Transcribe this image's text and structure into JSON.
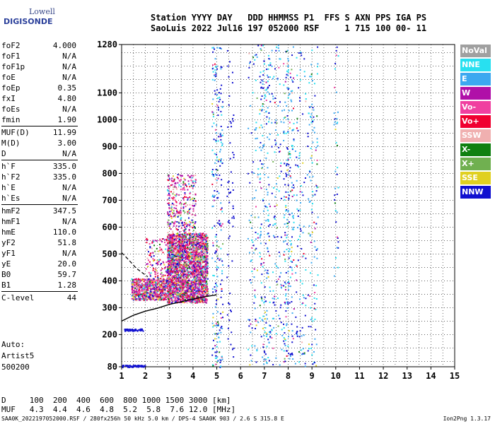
{
  "logo": {
    "line1": "Lowell",
    "line2": "DIGISONDE"
  },
  "header": {
    "line1": "Station YYYY DAY   DDD HHMMSS P1  FFS S AXN PPS IGA PS",
    "line2": "SaoLuis 2022 Jul16 197 052000 RSF     1 715 100 00- 11"
  },
  "params": [
    {
      "k": "foF2",
      "v": "4.000"
    },
    {
      "k": "foF1",
      "v": "N/A"
    },
    {
      "k": "foF1p",
      "v": "N/A"
    },
    {
      "k": "foE",
      "v": "N/A"
    },
    {
      "k": "foEp",
      "v": "0.35"
    },
    {
      "k": "fxI",
      "v": "4.80"
    },
    {
      "k": "foEs",
      "v": "N/A"
    },
    {
      "k": "fmin",
      "v": "1.90"
    },
    {
      "k": "MUF(D)",
      "v": "11.99"
    },
    {
      "k": "M(D)",
      "v": "3.00"
    },
    {
      "k": "D",
      "v": "N/A"
    },
    {
      "k": "h`F",
      "v": "335.0"
    },
    {
      "k": "h`F2",
      "v": "335.0"
    },
    {
      "k": "h`E",
      "v": "N/A"
    },
    {
      "k": "h`Es",
      "v": "N/A"
    },
    {
      "k": "hmF2",
      "v": "347.5"
    },
    {
      "k": "hmF1",
      "v": "N/A"
    },
    {
      "k": "hmE",
      "v": "110.0"
    },
    {
      "k": "yF2",
      "v": "51.8"
    },
    {
      "k": "yF1",
      "v": "N/A"
    },
    {
      "k": "yE",
      "v": "20.0"
    },
    {
      "k": "B0",
      "v": "59.7"
    },
    {
      "k": "B1",
      "v": "1.28"
    },
    {
      "k": "C-level",
      "v": "44"
    }
  ],
  "auto": {
    "line1": "Auto:",
    "line2": "Artist5",
    "line3": "500200"
  },
  "legend": [
    {
      "label": "NoVal",
      "color": "#a0a0a0"
    },
    {
      "label": "NNE",
      "color": "#28e0f0"
    },
    {
      "label": "E",
      "color": "#3ca8f0"
    },
    {
      "label": "W",
      "color": "#b010a8"
    },
    {
      "label": "Vo-",
      "color": "#f040a0"
    },
    {
      "label": "Vo+",
      "color": "#f00030"
    },
    {
      "label": "SSW",
      "color": "#f0b0b0"
    },
    {
      "label": "X-",
      "color": "#108010"
    },
    {
      "label": "X+",
      "color": "#70b050"
    },
    {
      "label": "SSE",
      "color": "#e0d020"
    },
    {
      "label": "NNW",
      "color": "#1010d0"
    }
  ],
  "dmuf": {
    "line1": "D     100  200  400  600  800 1000 1500 3000 [km]",
    "line2": "MUF   4.3  4.4  4.6  4.8  5.2  5.8  7.6 12.0 [MHz]"
  },
  "footer": {
    "left": "SAA0K_2022197052000.RSF / 280fx256h 50 kHz 5.0 km / DPS-4 SAA0K 903 / 2.6 S 315.8 E",
    "right": "Ion2Png 1.3.17"
  },
  "chart_data": {
    "type": "scatter",
    "x_ticks": [
      1,
      2,
      3,
      4,
      5,
      6,
      7,
      8,
      9,
      10,
      11,
      12,
      13,
      14,
      15
    ],
    "y_ticks": [
      80,
      200,
      300,
      400,
      500,
      600,
      700,
      800,
      900,
      1000,
      1100,
      1280
    ],
    "xlim": [
      1,
      15
    ],
    "ylim": [
      80,
      1280
    ],
    "grid": true,
    "traces": {
      "f_trace": [
        [
          1.0,
          250
        ],
        [
          1.5,
          272
        ],
        [
          2.0,
          287
        ],
        [
          2.5,
          298
        ],
        [
          3.0,
          312
        ],
        [
          3.5,
          322
        ],
        [
          4.0,
          332
        ],
        [
          4.5,
          341
        ],
        [
          5.0,
          348
        ]
      ],
      "dashed_trace": [
        [
          1.0,
          505
        ],
        [
          1.3,
          478
        ],
        [
          1.6,
          448
        ],
        [
          1.9,
          428
        ],
        [
          2.1,
          415
        ]
      ]
    }
  }
}
